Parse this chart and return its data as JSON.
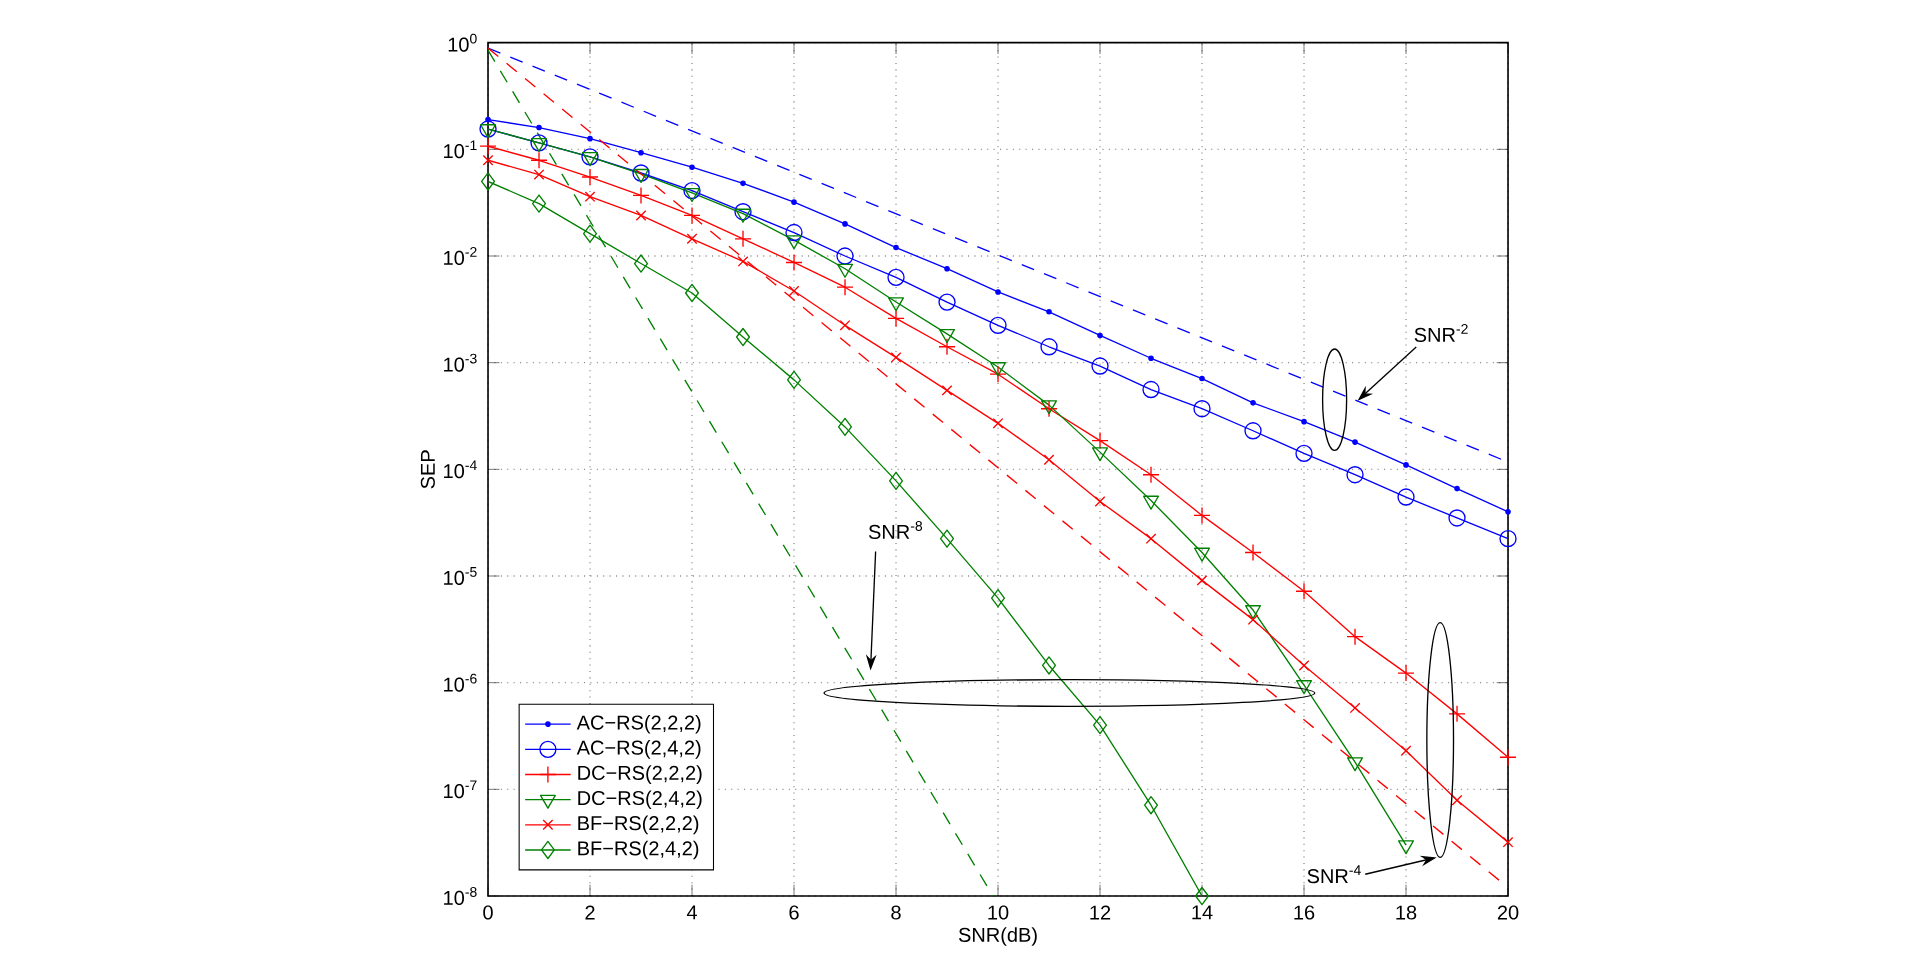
{
  "chart_data": {
    "type": "line",
    "xlabel": "SNR(dB)",
    "ylabel": "SEP",
    "log": "y",
    "grid": true,
    "legend": "bottom left",
    "xlim": [
      0,
      20
    ],
    "xticks": [
      0,
      2,
      4,
      6,
      8,
      10,
      12,
      14,
      16,
      18,
      20
    ],
    "ylim": [
      1e-08,
      1
    ],
    "yticks": [
      {
        "value": 1e-08,
        "label": "10$^{-8}$"
      },
      {
        "value": 1e-07,
        "label": "10$^{-7}$"
      },
      {
        "value": 1e-06,
        "label": "10$^{-6}$"
      },
      {
        "value": 1e-05,
        "label": "10$^{-5}$"
      },
      {
        "value": 0.0001,
        "label": "10$^{-4}$"
      },
      {
        "value": 0.001,
        "label": "10$^{-3}$"
      },
      {
        "value": 0.01,
        "label": "10$^{-2}$"
      },
      {
        "value": 0.1,
        "label": "10$^{-1}$"
      },
      {
        "value": 1,
        "label": "10$^{0}$"
      }
    ],
    "series": [
      {
        "name": "AC−RS(2,2,2)",
        "color": "#0000ff",
        "marker": "point",
        "line_style": "solid",
        "x": [
          0,
          1,
          2,
          3,
          4,
          5,
          6,
          7,
          8,
          9,
          10,
          11,
          12,
          13,
          14,
          15,
          16,
          17,
          18,
          19,
          20
        ],
        "values": [
          0.19,
          0.16,
          0.126,
          0.093,
          0.068,
          0.048,
          0.032,
          0.02,
          0.012,
          0.0076,
          0.0046,
          0.003,
          0.0018,
          0.0011,
          0.00071,
          0.00042,
          0.00028,
          0.00018,
          0.00011,
          6.6e-05,
          4e-05
        ]
      },
      {
        "name": "AC−RS(2,4,2)",
        "color": "#0000ff",
        "marker": "circle",
        "line_style": "solid",
        "x": [
          0,
          1,
          2,
          3,
          4,
          5,
          6,
          7,
          8,
          9,
          10,
          11,
          12,
          13,
          14,
          15,
          16,
          17,
          18,
          19,
          20
        ],
        "values": [
          0.155,
          0.115,
          0.085,
          0.06,
          0.041,
          0.026,
          0.0166,
          0.01,
          0.0063,
          0.0037,
          0.00224,
          0.00141,
          0.00093,
          0.00056,
          0.00037,
          0.00023,
          0.000141,
          8.9e-05,
          5.5e-05,
          3.5e-05,
          2.24e-05
        ]
      },
      {
        "name": "DC−RS(2,2,2)",
        "color": "#ff0000",
        "marker": "plus",
        "line_style": "solid",
        "x": [
          0,
          1,
          2,
          3,
          4,
          5,
          6,
          7,
          8,
          9,
          10,
          11,
          12,
          13,
          14,
          15,
          16,
          17,
          18,
          19,
          20
        ],
        "values": [
          0.107,
          0.079,
          0.055,
          0.037,
          0.024,
          0.0145,
          0.0087,
          0.0051,
          0.0026,
          0.00141,
          0.00078,
          0.00037,
          0.000186,
          8.9e-05,
          3.7e-05,
          1.66e-05,
          7.2e-06,
          2.7e-06,
          1.23e-06,
          5.1e-07,
          2e-07
        ]
      },
      {
        "name": "DC−RS(2,4,2)",
        "color": "#008000",
        "marker": "triangle down",
        "line_style": "solid",
        "x": [
          0,
          1,
          2,
          3,
          4,
          5,
          6,
          7,
          8,
          9,
          10,
          11,
          12,
          13,
          14,
          15,
          16,
          17,
          18
        ],
        "values": [
          0.155,
          0.115,
          0.085,
          0.059,
          0.039,
          0.025,
          0.0141,
          0.0076,
          0.0037,
          0.00186,
          0.00091,
          0.0004,
          0.000145,
          5.1e-05,
          1.66e-05,
          4.8e-06,
          9.5e-07,
          1.8e-07,
          3e-08
        ]
      },
      {
        "name": "BF−RS(2,2,2)",
        "color": "#ff0000",
        "marker": "cross",
        "line_style": "solid",
        "x": [
          0,
          1,
          2,
          3,
          4,
          5,
          6,
          7,
          8,
          9,
          10,
          11,
          12,
          13,
          14,
          15,
          16,
          17,
          18,
          19,
          20
        ],
        "values": [
          0.079,
          0.058,
          0.036,
          0.024,
          0.0145,
          0.0089,
          0.0047,
          0.00224,
          0.00112,
          0.00055,
          0.00027,
          0.000123,
          5e-05,
          2.24e-05,
          9.1e-06,
          3.9e-06,
          1.45e-06,
          5.8e-07,
          2.3e-07,
          7.9e-08,
          3.2e-08
        ]
      },
      {
        "name": "BF−RS(2,4,2)",
        "color": "#008000",
        "marker": "diamond",
        "line_style": "solid",
        "x": [
          0,
          1,
          2,
          3,
          4,
          5,
          6,
          7,
          8,
          9,
          10,
          11,
          12,
          13,
          14
        ],
        "values": [
          0.05,
          0.031,
          0.0162,
          0.0085,
          0.0045,
          0.00174,
          0.00069,
          0.00025,
          7.8e-05,
          2.24e-05,
          6.2e-06,
          1.45e-06,
          4e-07,
          7.1e-08,
          1e-08
        ]
      },
      {
        "color": "#0000ff",
        "marker": "none",
        "line_style": "dashed",
        "x": [
          0,
          20
        ],
        "values": [
          0.89,
          0.000117
        ]
      },
      {
        "color": "#ff0000",
        "marker": "none",
        "line_style": "dashed",
        "x": [
          0,
          20
        ],
        "values": [
          0.89,
          1.2e-08
        ]
      },
      {
        "color": "#008000",
        "marker": "none",
        "line_style": "dashed",
        "x": [
          0,
          9.9
        ],
        "values": [
          0.85,
          1e-08
        ]
      }
    ],
    "annotations": [
      "SNR$^{-2}$",
      "SNR$^{-8}$",
      "SNR$^{-4}$"
    ]
  }
}
